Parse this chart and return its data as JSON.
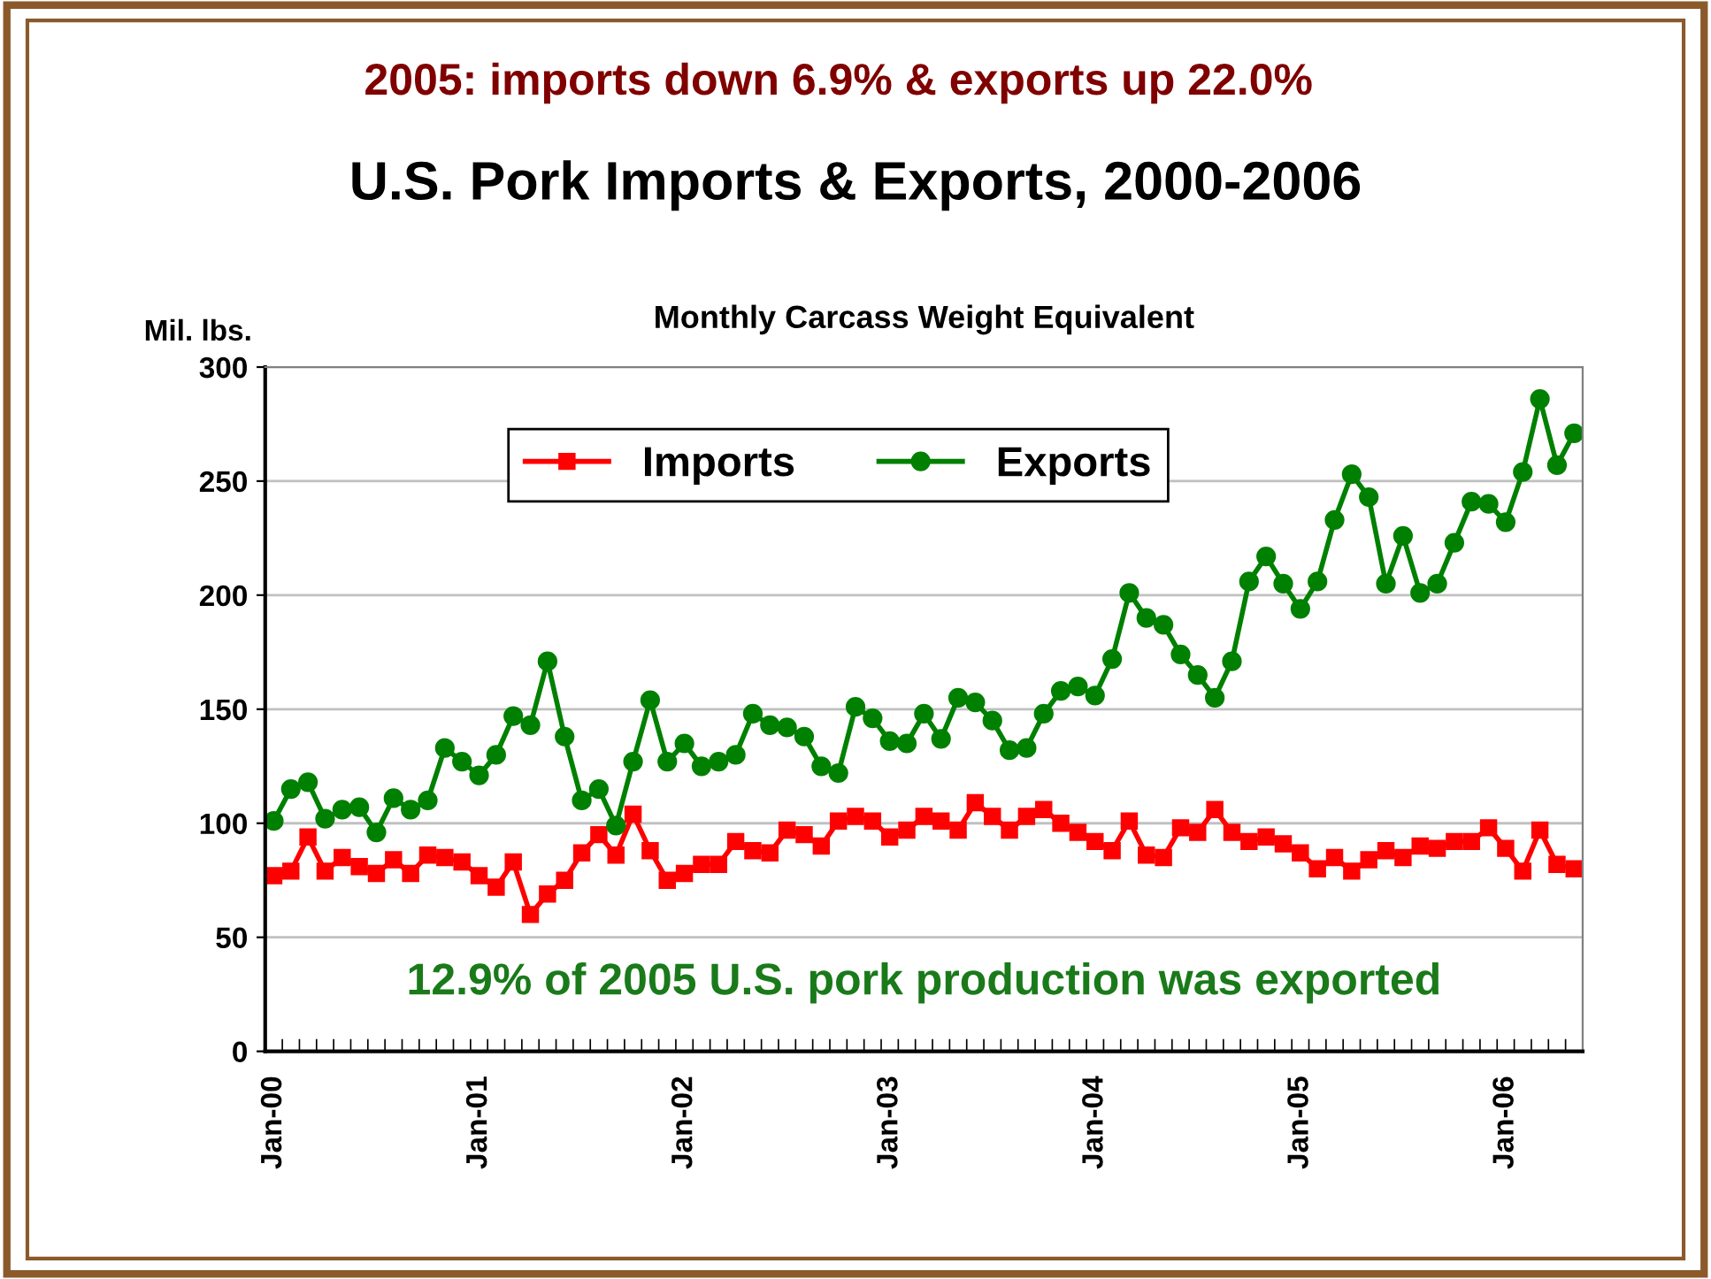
{
  "chart_data": {
    "type": "line",
    "title": "U.S. Pork Imports & Exports, 2000-2006",
    "subtitle": "Monthly Carcass Weight Equivalent",
    "ylabel": "Mil. lbs.",
    "annotations": [
      "2005: imports down 6.9% & exports up 22.0%",
      "12.9% of 2005 U.S. pork production was exported"
    ],
    "categories": [
      "Jan-00",
      null,
      null,
      null,
      null,
      null,
      null,
      null,
      null,
      null,
      null,
      null,
      "Jan-01",
      null,
      null,
      null,
      null,
      null,
      null,
      null,
      null,
      null,
      null,
      null,
      "Jan-02",
      null,
      null,
      null,
      null,
      null,
      null,
      null,
      null,
      null,
      null,
      null,
      "Jan-03",
      null,
      null,
      null,
      null,
      null,
      null,
      null,
      null,
      null,
      null,
      null,
      "Jan-04",
      null,
      null,
      null,
      null,
      null,
      null,
      null,
      null,
      null,
      null,
      null,
      "Jan-05",
      null,
      null,
      null,
      null,
      null,
      null,
      null,
      null,
      null,
      null,
      null,
      "Jan-06",
      null,
      null,
      null,
      null
    ],
    "series": [
      {
        "name": "Imports",
        "color": "#ff0000",
        "marker": "square",
        "values": [
          77,
          79,
          94,
          79,
          85,
          81,
          78,
          84,
          78,
          86,
          85,
          83,
          77,
          72,
          83,
          60,
          69,
          75,
          87,
          95,
          86,
          104,
          88,
          75,
          78,
          82,
          82,
          92,
          88,
          87,
          97,
          95,
          90,
          101,
          103,
          101,
          94,
          97,
          103,
          101,
          97,
          109,
          103,
          97,
          103,
          106,
          100,
          96,
          92,
          88,
          101,
          86,
          85,
          98,
          96,
          106,
          96,
          92,
          94,
          91,
          87,
          80,
          85,
          79,
          84,
          88,
          85,
          90,
          89,
          92,
          92,
          98,
          89,
          79,
          97,
          82,
          80
        ]
      },
      {
        "name": "Exports",
        "color": "#008000",
        "marker": "circle",
        "values": [
          101,
          115,
          118,
          102,
          106,
          107,
          96,
          111,
          106,
          110,
          133,
          127,
          121,
          130,
          147,
          143,
          171,
          138,
          110,
          115,
          99,
          127,
          154,
          127,
          135,
          125,
          127,
          130,
          148,
          143,
          142,
          138,
          125,
          122,
          151,
          146,
          136,
          135,
          148,
          137,
          155,
          153,
          145,
          132,
          133,
          148,
          158,
          160,
          156,
          172,
          201,
          190,
          187,
          174,
          165,
          155,
          171,
          206,
          217,
          205,
          194,
          206,
          233,
          253,
          243,
          205,
          226,
          201,
          205,
          223,
          241,
          240,
          232,
          254,
          286,
          257,
          271
        ]
      }
    ],
    "ylim": [
      0,
      300
    ],
    "yticks": [
      0,
      50,
      100,
      150,
      200,
      250,
      300
    ],
    "grid": "y",
    "legend": "top",
    "line_style": "solid"
  }
}
